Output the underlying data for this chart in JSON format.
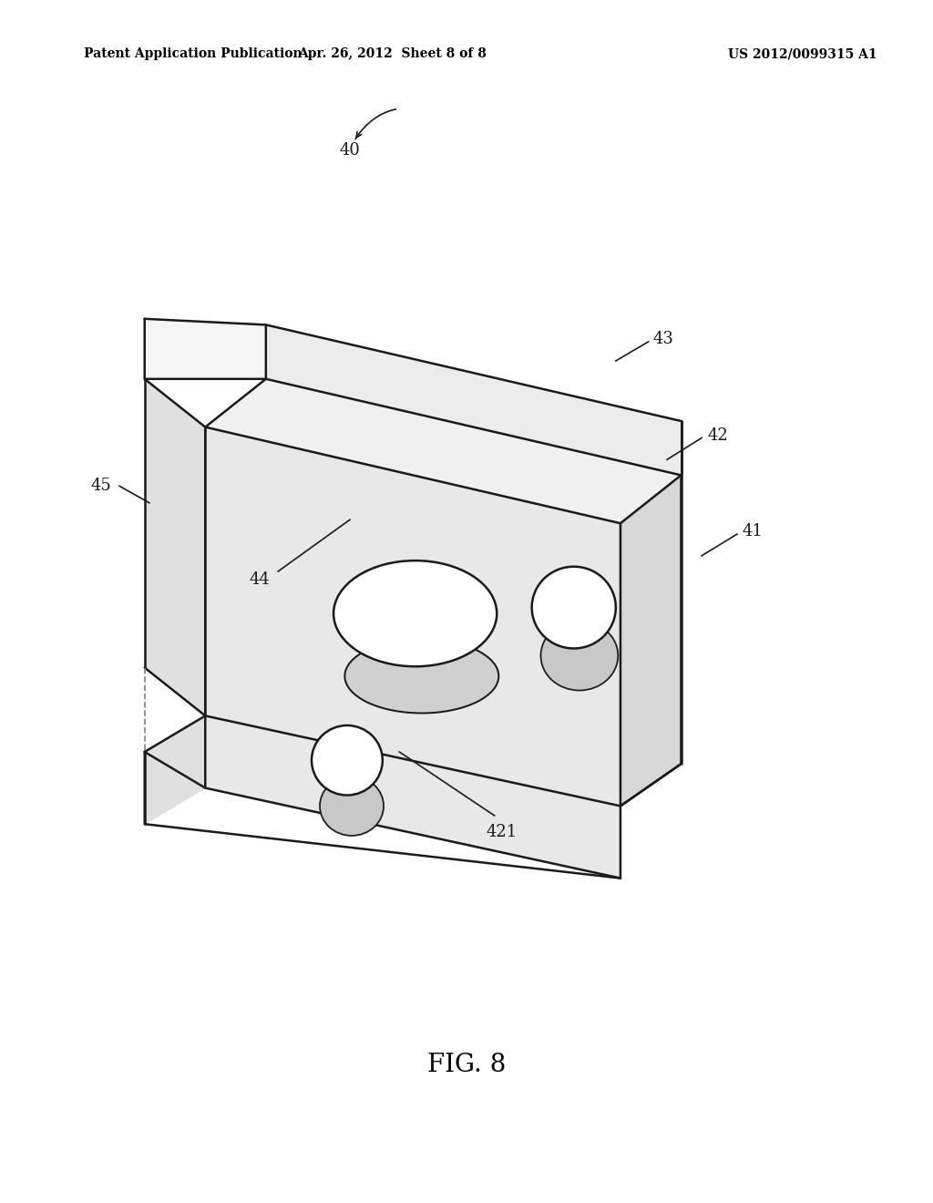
{
  "bg_color": "#ffffff",
  "line_color": "#1a1a1a",
  "line_width": 1.8,
  "header_left": "Patent Application Publication",
  "header_center": "Apr. 26, 2012  Sheet 8 of 8",
  "header_right": "US 2012/0099315 A1",
  "fig_label": "FIG. 8",
  "label_fontsize": 13,
  "header_fontsize": 10,
  "fig_fontsize": 20
}
